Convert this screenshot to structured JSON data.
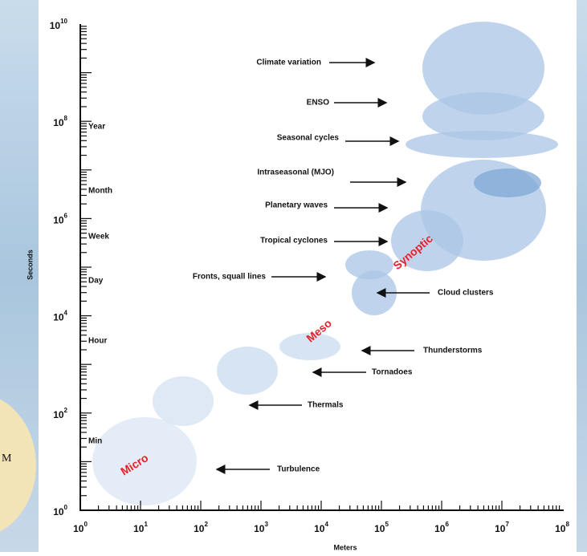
{
  "axes": {
    "y_title": "Seconds",
    "x_title": "Meters",
    "y_tick_labels": [
      {
        "base": "10",
        "exp": "0"
      },
      {
        "base": "10",
        "exp": "2"
      },
      {
        "base": "10",
        "exp": "4"
      },
      {
        "base": "10",
        "exp": "6"
      },
      {
        "base": "10",
        "exp": "8"
      },
      {
        "base": "10",
        "exp": "10"
      }
    ],
    "x_tick_labels": [
      {
        "base": "10",
        "exp": "0"
      },
      {
        "base": "10",
        "exp": "1"
      },
      {
        "base": "10",
        "exp": "2"
      },
      {
        "base": "10",
        "exp": "3"
      },
      {
        "base": "10",
        "exp": "4"
      },
      {
        "base": "10",
        "exp": "5"
      },
      {
        "base": "10",
        "exp": "6"
      },
      {
        "base": "10",
        "exp": "7"
      },
      {
        "base": "10",
        "exp": "8"
      }
    ]
  },
  "time_labels": [
    "Min",
    "Hour",
    "Day",
    "Week",
    "Month",
    "Year"
  ],
  "phenomena": [
    "Climate variation",
    "ENSO",
    "Seasonal cycles",
    "Intraseasonal (MJO)",
    "Planetary waves",
    "Tropical cyclones",
    "Fronts, squall lines",
    "Cloud clusters",
    "Thunderstorms",
    "Tornadoes",
    "Thermals",
    "Turbulence"
  ],
  "regions": [
    "Micro",
    "Meso",
    "Synoptic"
  ],
  "background_text": "M"
}
